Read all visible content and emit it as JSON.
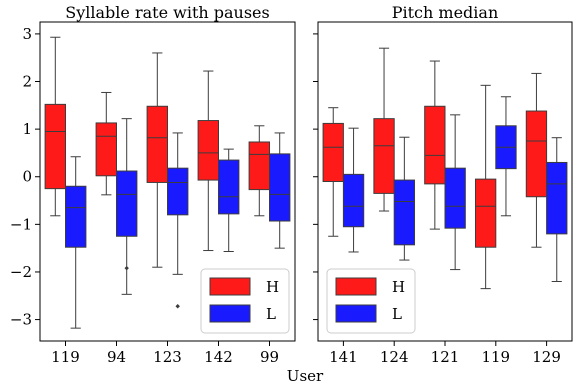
{
  "chart_data": {
    "type": "box",
    "xlabel": "User",
    "ylim": [
      -3.45,
      3.25
    ],
    "yticks": [
      -3,
      -2,
      -1,
      0,
      1,
      2,
      3
    ],
    "legend_placement": "lower-right",
    "legend": [
      {
        "label": "H",
        "color": "#ff1a1a"
      },
      {
        "label": "L",
        "color": "#1a1aff"
      }
    ],
    "panels": [
      {
        "title": "Syllable rate with pauses",
        "categories": [
          "119",
          "94",
          "123",
          "142",
          "99"
        ],
        "legend_position": "lower-right",
        "series": [
          {
            "name": "H",
            "color": "#ff1a1a",
            "boxes": [
              {
                "whisker_low": -0.82,
                "q1": -0.25,
                "median": 0.95,
                "q3": 1.52,
                "whisker_high": 2.93,
                "outliers": []
              },
              {
                "whisker_low": -0.38,
                "q1": 0.02,
                "median": 0.85,
                "q3": 1.13,
                "whisker_high": 1.77,
                "outliers": []
              },
              {
                "whisker_low": -1.9,
                "q1": -0.12,
                "median": 0.82,
                "q3": 1.48,
                "whisker_high": 2.6,
                "outliers": []
              },
              {
                "whisker_low": -1.55,
                "q1": -0.07,
                "median": 0.5,
                "q3": 1.18,
                "whisker_high": 2.22,
                "outliers": []
              },
              {
                "whisker_low": -0.82,
                "q1": -0.27,
                "median": 0.47,
                "q3": 0.73,
                "whisker_high": 1.07,
                "outliers": []
              }
            ]
          },
          {
            "name": "L",
            "color": "#1a1aff",
            "boxes": [
              {
                "whisker_low": -3.18,
                "q1": -1.48,
                "median": -0.65,
                "q3": -0.2,
                "whisker_high": 0.42,
                "outliers": []
              },
              {
                "whisker_low": -2.47,
                "q1": -1.25,
                "median": -0.37,
                "q3": 0.12,
                "whisker_high": 1.22,
                "outliers": [
                  -1.92
                ]
              },
              {
                "whisker_low": -2.05,
                "q1": -0.8,
                "median": -0.12,
                "q3": 0.18,
                "whisker_high": 0.92,
                "outliers": [
                  -2.72
                ]
              },
              {
                "whisker_low": -1.57,
                "q1": -0.78,
                "median": -0.42,
                "q3": 0.35,
                "whisker_high": 0.58,
                "outliers": []
              },
              {
                "whisker_low": -1.5,
                "q1": -0.93,
                "median": -0.37,
                "q3": 0.48,
                "whisker_high": 0.92,
                "outliers": []
              }
            ]
          }
        ]
      },
      {
        "title": "Pitch median",
        "categories": [
          "141",
          "124",
          "121",
          "119",
          "129"
        ],
        "legend_position": "lower-left",
        "series": [
          {
            "name": "H",
            "color": "#ff1a1a",
            "boxes": [
              {
                "whisker_low": -1.25,
                "q1": -0.1,
                "median": 0.62,
                "q3": 1.12,
                "whisker_high": 1.45,
                "outliers": []
              },
              {
                "whisker_low": -0.72,
                "q1": -0.35,
                "median": 0.65,
                "q3": 1.22,
                "whisker_high": 2.7,
                "outliers": []
              },
              {
                "whisker_low": -1.1,
                "q1": -0.15,
                "median": 0.45,
                "q3": 1.48,
                "whisker_high": 2.43,
                "outliers": []
              },
              {
                "whisker_low": -2.35,
                "q1": -1.48,
                "median": -0.62,
                "q3": -0.05,
                "whisker_high": 1.92,
                "outliers": []
              },
              {
                "whisker_low": -1.48,
                "q1": -0.42,
                "median": 0.75,
                "q3": 1.38,
                "whisker_high": 2.17,
                "outliers": []
              }
            ]
          },
          {
            "name": "L",
            "color": "#1a1aff",
            "boxes": [
              {
                "whisker_low": -1.58,
                "q1": -1.05,
                "median": -0.62,
                "q3": 0.05,
                "whisker_high": 1.02,
                "outliers": []
              },
              {
                "whisker_low": -1.75,
                "q1": -1.43,
                "median": -0.52,
                "q3": -0.07,
                "whisker_high": 0.83,
                "outliers": []
              },
              {
                "whisker_low": -1.95,
                "q1": -1.08,
                "median": -0.62,
                "q3": 0.18,
                "whisker_high": 1.3,
                "outliers": []
              },
              {
                "whisker_low": -0.82,
                "q1": 0.17,
                "median": 0.62,
                "q3": 1.07,
                "whisker_high": 1.68,
                "outliers": []
              },
              {
                "whisker_low": -2.2,
                "q1": -1.2,
                "median": -0.15,
                "q3": 0.3,
                "whisker_high": 0.82,
                "outliers": []
              }
            ]
          }
        ]
      }
    ]
  }
}
